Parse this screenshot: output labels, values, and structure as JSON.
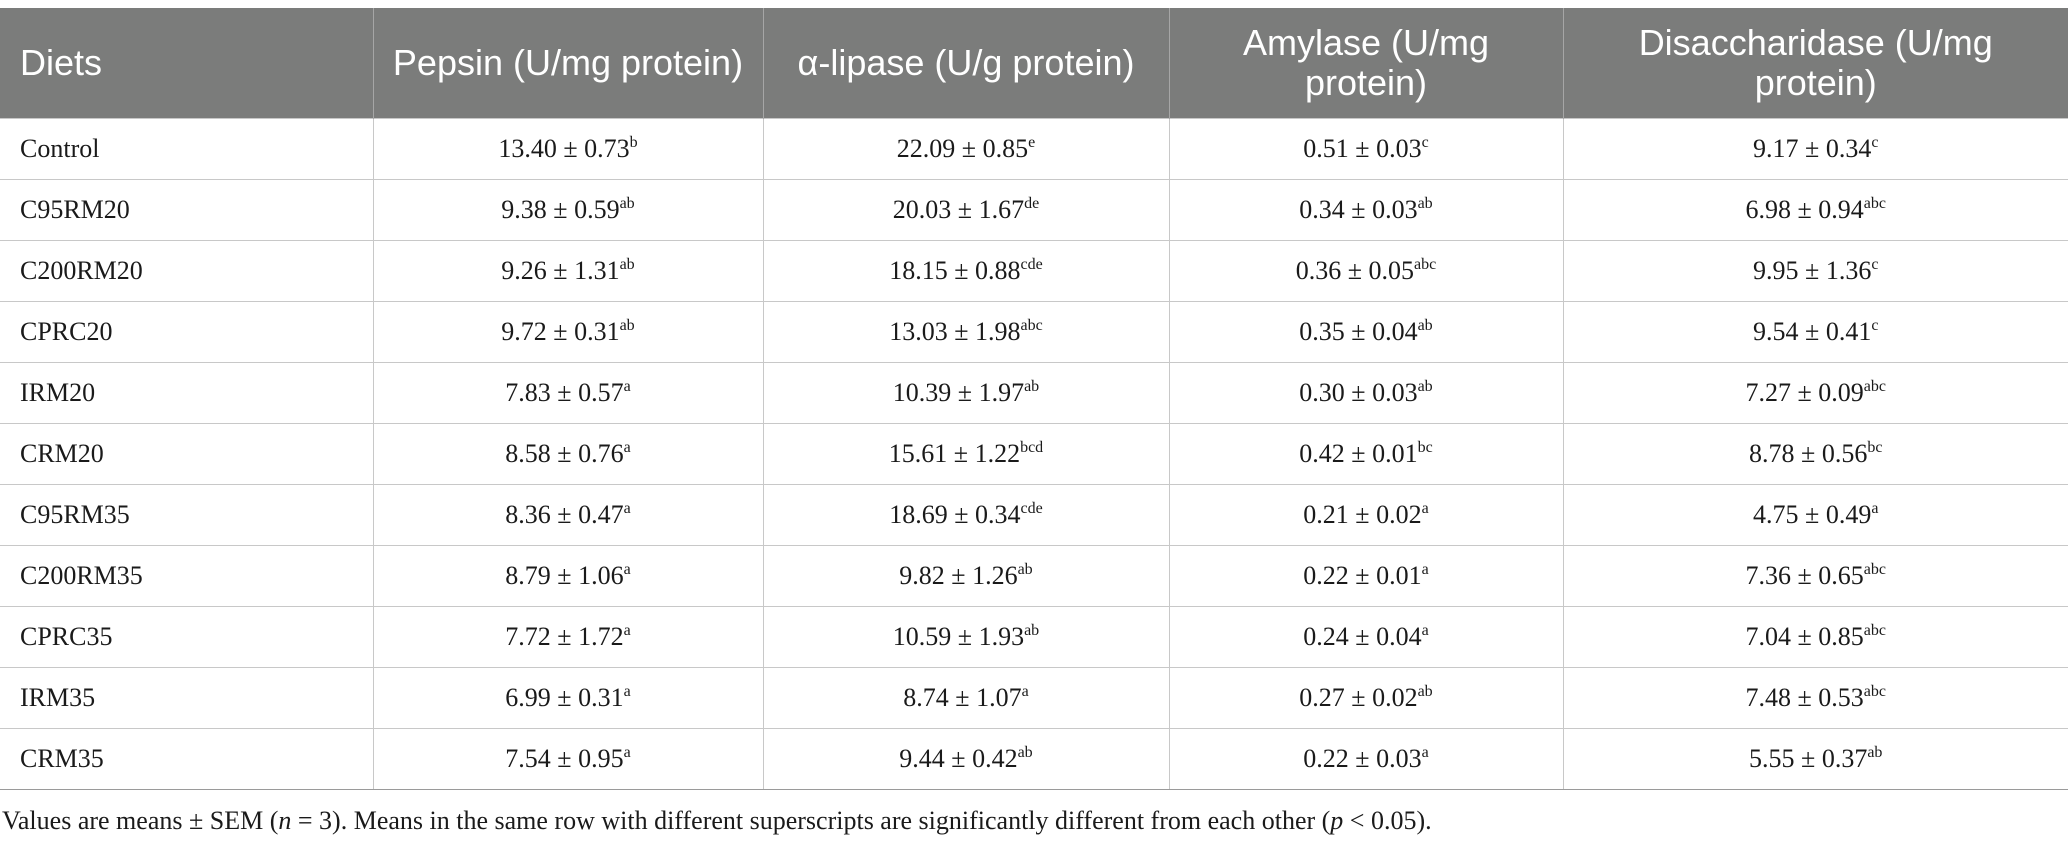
{
  "table": {
    "headers": [
      "Diets",
      "Pepsin (U/mg protein)",
      "α-lipase (U/g protein)",
      "Amylase (U/mg protein)",
      "Disaccharidase (U/mg protein)"
    ],
    "rows": [
      {
        "diet": "Control",
        "pepsin": {
          "v": "13.40 ± 0.73",
          "s": "b"
        },
        "lipase": {
          "v": "22.09 ± 0.85",
          "s": "e"
        },
        "amylase": {
          "v": "0.51 ± 0.03",
          "s": "c"
        },
        "disacch": {
          "v": "9.17 ± 0.34",
          "s": "c"
        }
      },
      {
        "diet": "C95RM20",
        "pepsin": {
          "v": "9.38 ± 0.59",
          "s": "ab"
        },
        "lipase": {
          "v": "20.03 ± 1.67",
          "s": "de"
        },
        "amylase": {
          "v": "0.34 ± 0.03",
          "s": "ab"
        },
        "disacch": {
          "v": "6.98 ± 0.94",
          "s": "abc"
        }
      },
      {
        "diet": "C200RM20",
        "pepsin": {
          "v": "9.26 ± 1.31",
          "s": "ab"
        },
        "lipase": {
          "v": "18.15 ± 0.88",
          "s": "cde"
        },
        "amylase": {
          "v": "0.36 ± 0.05",
          "s": "abc"
        },
        "disacch": {
          "v": "9.95 ± 1.36",
          "s": "c"
        }
      },
      {
        "diet": "CPRC20",
        "pepsin": {
          "v": "9.72 ± 0.31",
          "s": "ab"
        },
        "lipase": {
          "v": "13.03 ± 1.98",
          "s": "abc"
        },
        "amylase": {
          "v": "0.35 ± 0.04",
          "s": "ab"
        },
        "disacch": {
          "v": "9.54 ± 0.41",
          "s": "c"
        }
      },
      {
        "diet": "IRM20",
        "pepsin": {
          "v": "7.83 ± 0.57",
          "s": "a"
        },
        "lipase": {
          "v": "10.39 ± 1.97",
          "s": "ab"
        },
        "amylase": {
          "v": "0.30 ± 0.03",
          "s": "ab"
        },
        "disacch": {
          "v": "7.27 ± 0.09",
          "s": "abc"
        }
      },
      {
        "diet": "CRM20",
        "pepsin": {
          "v": "8.58 ± 0.76",
          "s": "a"
        },
        "lipase": {
          "v": "15.61 ± 1.22",
          "s": "bcd"
        },
        "amylase": {
          "v": "0.42 ± 0.01",
          "s": "bc"
        },
        "disacch": {
          "v": "8.78 ± 0.56",
          "s": "bc"
        }
      },
      {
        "diet": "C95RM35",
        "pepsin": {
          "v": "8.36 ± 0.47",
          "s": "a"
        },
        "lipase": {
          "v": "18.69 ± 0.34",
          "s": "cde"
        },
        "amylase": {
          "v": "0.21 ± 0.02",
          "s": "a"
        },
        "disacch": {
          "v": "4.75 ± 0.49",
          "s": "a"
        }
      },
      {
        "diet": "C200RM35",
        "pepsin": {
          "v": "8.79 ± 1.06",
          "s": "a"
        },
        "lipase": {
          "v": "9.82 ± 1.26",
          "s": "ab"
        },
        "amylase": {
          "v": "0.22 ± 0.01",
          "s": "a"
        },
        "disacch": {
          "v": "7.36 ± 0.65",
          "s": "abc"
        }
      },
      {
        "diet": "CPRC35",
        "pepsin": {
          "v": "7.72 ± 1.72",
          "s": "a"
        },
        "lipase": {
          "v": "10.59 ± 1.93",
          "s": "ab"
        },
        "amylase": {
          "v": "0.24 ± 0.04",
          "s": "a"
        },
        "disacch": {
          "v": "7.04 ± 0.85",
          "s": "abc"
        }
      },
      {
        "diet": "IRM35",
        "pepsin": {
          "v": "6.99 ± 0.31",
          "s": "a"
        },
        "lipase": {
          "v": "8.74 ± 1.07",
          "s": "a"
        },
        "amylase": {
          "v": "0.27 ± 0.02",
          "s": "ab"
        },
        "disacch": {
          "v": "7.48 ± 0.53",
          "s": "abc"
        }
      },
      {
        "diet": "CRM35",
        "pepsin": {
          "v": "7.54 ± 0.95",
          "s": "a"
        },
        "lipase": {
          "v": "9.44 ± 0.42",
          "s": "ab"
        },
        "amylase": {
          "v": "0.22 ± 0.03",
          "s": "a"
        },
        "disacch": {
          "v": "5.55 ± 0.37",
          "s": "ab"
        }
      }
    ]
  },
  "footnote": {
    "part1": "Values are means ± SEM (",
    "n": "n",
    "part2": " = 3). Means in the same row with different superscripts are significantly different from each other (",
    "p": "p",
    "part3": " < 0.05)."
  }
}
